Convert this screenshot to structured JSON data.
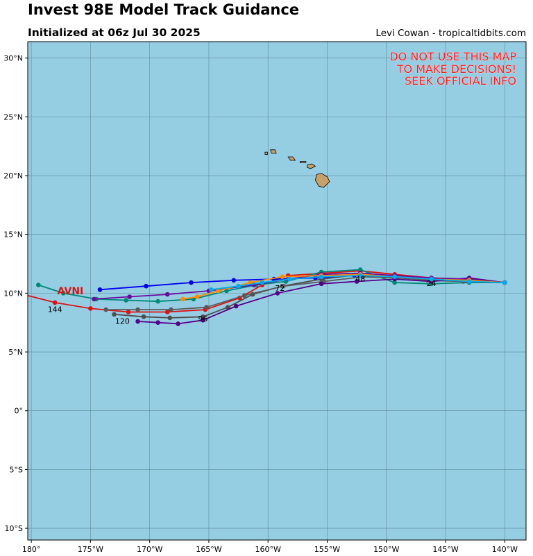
{
  "header": {
    "title": "Invest 98E Model Track Guidance",
    "subtitle": "Initialized at 06z Jul 30 2025",
    "credit": "Levi Cowan - tropicaltidbits.com"
  },
  "warning_lines": [
    "DO NOT USE THIS MAP",
    "TO MAKE DECISIONS!",
    "SEEK OFFICIAL INFO"
  ],
  "map": {
    "lon_range": [
      -180.3,
      -138.2
    ],
    "lat_range": [
      -11.0,
      31.4
    ],
    "ocean_color": "#95cde3",
    "land_color": "#c8a06a",
    "grid_color": "#5f8b96",
    "lon_ticks": [
      {
        "value": -180,
        "label": "180°"
      },
      {
        "value": -175,
        "label": "175°W"
      },
      {
        "value": -170,
        "label": "170°W"
      },
      {
        "value": -165,
        "label": "165°W"
      },
      {
        "value": -160,
        "label": "160°W"
      },
      {
        "value": -155,
        "label": "155°W"
      },
      {
        "value": -150,
        "label": "150°W"
      },
      {
        "value": -145,
        "label": "145°W"
      },
      {
        "value": -140,
        "label": "140°W"
      }
    ],
    "lat_ticks": [
      {
        "value": 30,
        "label": "30°N"
      },
      {
        "value": 25,
        "label": "25°N"
      },
      {
        "value": 20,
        "label": "20°N"
      },
      {
        "value": 15,
        "label": "15°N"
      },
      {
        "value": 10,
        "label": "10°N"
      },
      {
        "value": 5,
        "label": "5°N"
      },
      {
        "value": 0,
        "label": "0°"
      },
      {
        "value": -5,
        "label": "5°S"
      },
      {
        "value": -10,
        "label": "10°S"
      }
    ]
  },
  "hour_labels": [
    {
      "text": "24",
      "lon": -146.2,
      "lat": 10.6
    },
    {
      "text": "48",
      "lon": -152.2,
      "lat": 11.0
    },
    {
      "text": "72",
      "lon": -159.0,
      "lat": 10.2
    },
    {
      "text": "96",
      "lon": -165.5,
      "lat": 7.6
    },
    {
      "text": "120",
      "lon": -172.3,
      "lat": 7.4
    },
    {
      "text": "144",
      "lon": -178.0,
      "lat": 8.4
    }
  ],
  "model_label": {
    "text": "AVNI",
    "lon": -177.8,
    "lat": 9.9
  },
  "tracks": [
    {
      "color": "#e01010",
      "points": [
        [
          -140,
          10.9
        ],
        [
          -143,
          11.1
        ],
        [
          -146.2,
          11.3
        ],
        [
          -149.3,
          11.6
        ],
        [
          -152.2,
          11.9
        ],
        [
          -155.3,
          11.7
        ],
        [
          -158.3,
          11.5
        ],
        [
          -160.5,
          10.7
        ],
        [
          -162.4,
          9.6
        ],
        [
          -165.3,
          8.6
        ],
        [
          -168.5,
          8.4
        ],
        [
          -171.8,
          8.4
        ],
        [
          -175,
          8.7
        ],
        [
          -178,
          9.2
        ],
        [
          -180.3,
          9.8
        ]
      ]
    },
    {
      "color": "#0000ee",
      "points": [
        [
          -140,
          10.9
        ],
        [
          -143,
          11.0
        ],
        [
          -146.2,
          11.2
        ],
        [
          -149.3,
          11.4
        ],
        [
          -152.7,
          11.5
        ],
        [
          -156,
          11.3
        ],
        [
          -159.5,
          11.2
        ],
        [
          -162.9,
          11.1
        ],
        [
          -166.5,
          10.9
        ],
        [
          -170.3,
          10.6
        ],
        [
          -174.2,
          10.3
        ]
      ]
    },
    {
      "color": "#008877",
      "points": [
        [
          -140,
          10.9
        ],
        [
          -143,
          10.9
        ],
        [
          -146.2,
          10.8
        ],
        [
          -149.3,
          10.9
        ],
        [
          -152.2,
          12.0
        ],
        [
          -155.5,
          11.8
        ],
        [
          -158.5,
          11.0
        ],
        [
          -161.0,
          10.7
        ],
        [
          -163.5,
          10.2
        ],
        [
          -166.3,
          9.5
        ],
        [
          -169.3,
          9.3
        ],
        [
          -172.0,
          9.4
        ],
        [
          -174.5,
          9.5
        ],
        [
          -177.3,
          10.0
        ],
        [
          -179.4,
          10.7
        ]
      ]
    },
    {
      "color": "#4d4d4d",
      "points": [
        [
          -140,
          10.9
        ],
        [
          -143.2,
          11.1
        ],
        [
          -146.2,
          11.2
        ],
        [
          -149.3,
          11.5
        ],
        [
          -152.2,
          11.6
        ],
        [
          -155.5,
          11.2
        ],
        [
          -158.8,
          10.6
        ],
        [
          -161.3,
          9.9
        ],
        [
          -163.4,
          8.8
        ],
        [
          -165.5,
          8.0
        ],
        [
          -168.3,
          7.9
        ],
        [
          -170.5,
          8.0
        ],
        [
          -173.0,
          8.2
        ]
      ]
    },
    {
      "color": "#5a5a5a",
      "points": [
        [
          -140,
          10.9
        ],
        [
          -143.5,
          11.0
        ],
        [
          -146.5,
          11.1
        ],
        [
          -149.0,
          11.3
        ],
        [
          -152.0,
          11.4
        ],
        [
          -155.3,
          11.0
        ],
        [
          -158.7,
          10.6
        ],
        [
          -162.0,
          9.8
        ],
        [
          -165.2,
          8.8
        ],
        [
          -168.2,
          8.6
        ],
        [
          -171.0,
          8.6
        ],
        [
          -173.7,
          8.6
        ]
      ]
    },
    {
      "color": "#550088",
      "points": [
        [
          -140,
          10.9
        ],
        [
          -143,
          11.3
        ],
        [
          -146.2,
          11.0
        ],
        [
          -149.3,
          11.2
        ],
        [
          -152.5,
          11.0
        ],
        [
          -155.5,
          10.8
        ],
        [
          -159.2,
          10.0
        ],
        [
          -162.7,
          8.9
        ],
        [
          -165.5,
          7.7
        ],
        [
          -167.6,
          7.4
        ],
        [
          -169.3,
          7.5
        ],
        [
          -171.0,
          7.6
        ]
      ]
    },
    {
      "color": "#6a0aa0",
      "points": [
        [
          -140,
          10.9
        ],
        [
          -143,
          11.2
        ],
        [
          -146.2,
          11.3
        ],
        [
          -149.3,
          11.5
        ],
        [
          -152.2,
          11.7
        ],
        [
          -155.5,
          11.6
        ],
        [
          -158.3,
          11.2
        ],
        [
          -161.2,
          10.7
        ],
        [
          -165.0,
          10.2
        ],
        [
          -168.5,
          9.9
        ],
        [
          -171.7,
          9.7
        ],
        [
          -174.7,
          9.5
        ]
      ]
    },
    {
      "color": "#ff8c00",
      "points": [
        [
          -140,
          10.9
        ],
        [
          -143,
          11.1
        ],
        [
          -146.2,
          11.2
        ],
        [
          -149.3,
          11.4
        ],
        [
          -152.2,
          11.6
        ],
        [
          -155.5,
          11.5
        ],
        [
          -158.8,
          11.4
        ],
        [
          -161.5,
          10.9
        ],
        [
          -164.2,
          10.2
        ],
        [
          -166.0,
          9.7
        ],
        [
          -167.2,
          9.5
        ]
      ]
    },
    {
      "color": "#00aaee",
      "points": [
        [
          -140,
          10.9
        ],
        [
          -143,
          11.0
        ],
        [
          -146.2,
          11.2
        ],
        [
          -149.3,
          11.4
        ],
        [
          -152.2,
          11.5
        ],
        [
          -155.5,
          11.4
        ],
        [
          -158.2,
          11.2
        ],
        [
          -160.5,
          10.9
        ],
        [
          -162.5,
          10.6
        ],
        [
          -164.8,
          10.3
        ]
      ]
    }
  ],
  "islands": [
    {
      "name": "hawaii",
      "points": [
        [
          -155.9,
          20.1
        ],
        [
          -155.5,
          20.2
        ],
        [
          -155.0,
          19.9
        ],
        [
          -154.8,
          19.5
        ],
        [
          -155.3,
          19.0
        ],
        [
          -155.7,
          19.1
        ],
        [
          -156.0,
          19.6
        ]
      ]
    },
    {
      "name": "maui",
      "points": [
        [
          -156.7,
          20.9
        ],
        [
          -156.3,
          21.0
        ],
        [
          -156.0,
          20.8
        ],
        [
          -156.4,
          20.6
        ],
        [
          -156.7,
          20.7
        ]
      ]
    },
    {
      "name": "molokai",
      "points": [
        [
          -157.3,
          21.2
        ],
        [
          -156.8,
          21.2
        ],
        [
          -156.8,
          21.1
        ],
        [
          -157.3,
          21.1
        ]
      ]
    },
    {
      "name": "oahu",
      "points": [
        [
          -158.3,
          21.6
        ],
        [
          -157.9,
          21.6
        ],
        [
          -157.7,
          21.3
        ],
        [
          -158.1,
          21.3
        ]
      ]
    },
    {
      "name": "kauai",
      "points": [
        [
          -159.8,
          22.2
        ],
        [
          -159.4,
          22.2
        ],
        [
          -159.3,
          21.9
        ],
        [
          -159.7,
          21.9
        ]
      ]
    },
    {
      "name": "niihau",
      "points": [
        [
          -160.25,
          22.0
        ],
        [
          -160.05,
          22.0
        ],
        [
          -160.05,
          21.8
        ],
        [
          -160.25,
          21.8
        ]
      ]
    }
  ]
}
